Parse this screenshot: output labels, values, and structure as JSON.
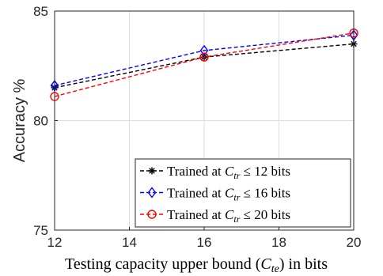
{
  "chart_data": {
    "type": "line",
    "title": "",
    "xlabel": {
      "prefix": "Testing capacity upper bound (",
      "var": "C",
      "sub": "te",
      "suffix": ") in bits"
    },
    "ylabel": "Accuracy %",
    "xlim": [
      12,
      20
    ],
    "ylim": [
      75,
      85
    ],
    "xticks": [
      "12",
      "14",
      "16",
      "18",
      "20"
    ],
    "yticks": [
      "75",
      "80",
      "85"
    ],
    "grid": true,
    "legend_position": "lower-right",
    "x": [
      12,
      16,
      20
    ],
    "series": [
      {
        "name": "Trained at C_tr ≤ 12 bits",
        "legend": {
          "prefix": "Trained at ",
          "var": "C",
          "sub": "tr",
          "rel": " ≤ 12 bits"
        },
        "color": "#000000",
        "marker": "asterisk",
        "values": [
          81.5,
          82.9,
          83.5
        ]
      },
      {
        "name": "Trained at C_tr ≤ 16 bits",
        "legend": {
          "prefix": "Trained at ",
          "var": "C",
          "sub": "tr",
          "rel": " ≤ 16 bits"
        },
        "color": "#0000ff",
        "marker": "diamond",
        "values": [
          81.6,
          83.2,
          83.9
        ]
      },
      {
        "name": "Trained at C_tr ≤ 20 bits",
        "legend": {
          "prefix": "Trained at ",
          "var": "C",
          "sub": "tr",
          "rel": " ≤ 20 bits"
        },
        "color": "#ff0000",
        "marker": "circle",
        "values": [
          81.1,
          82.9,
          84.0
        ]
      }
    ]
  }
}
